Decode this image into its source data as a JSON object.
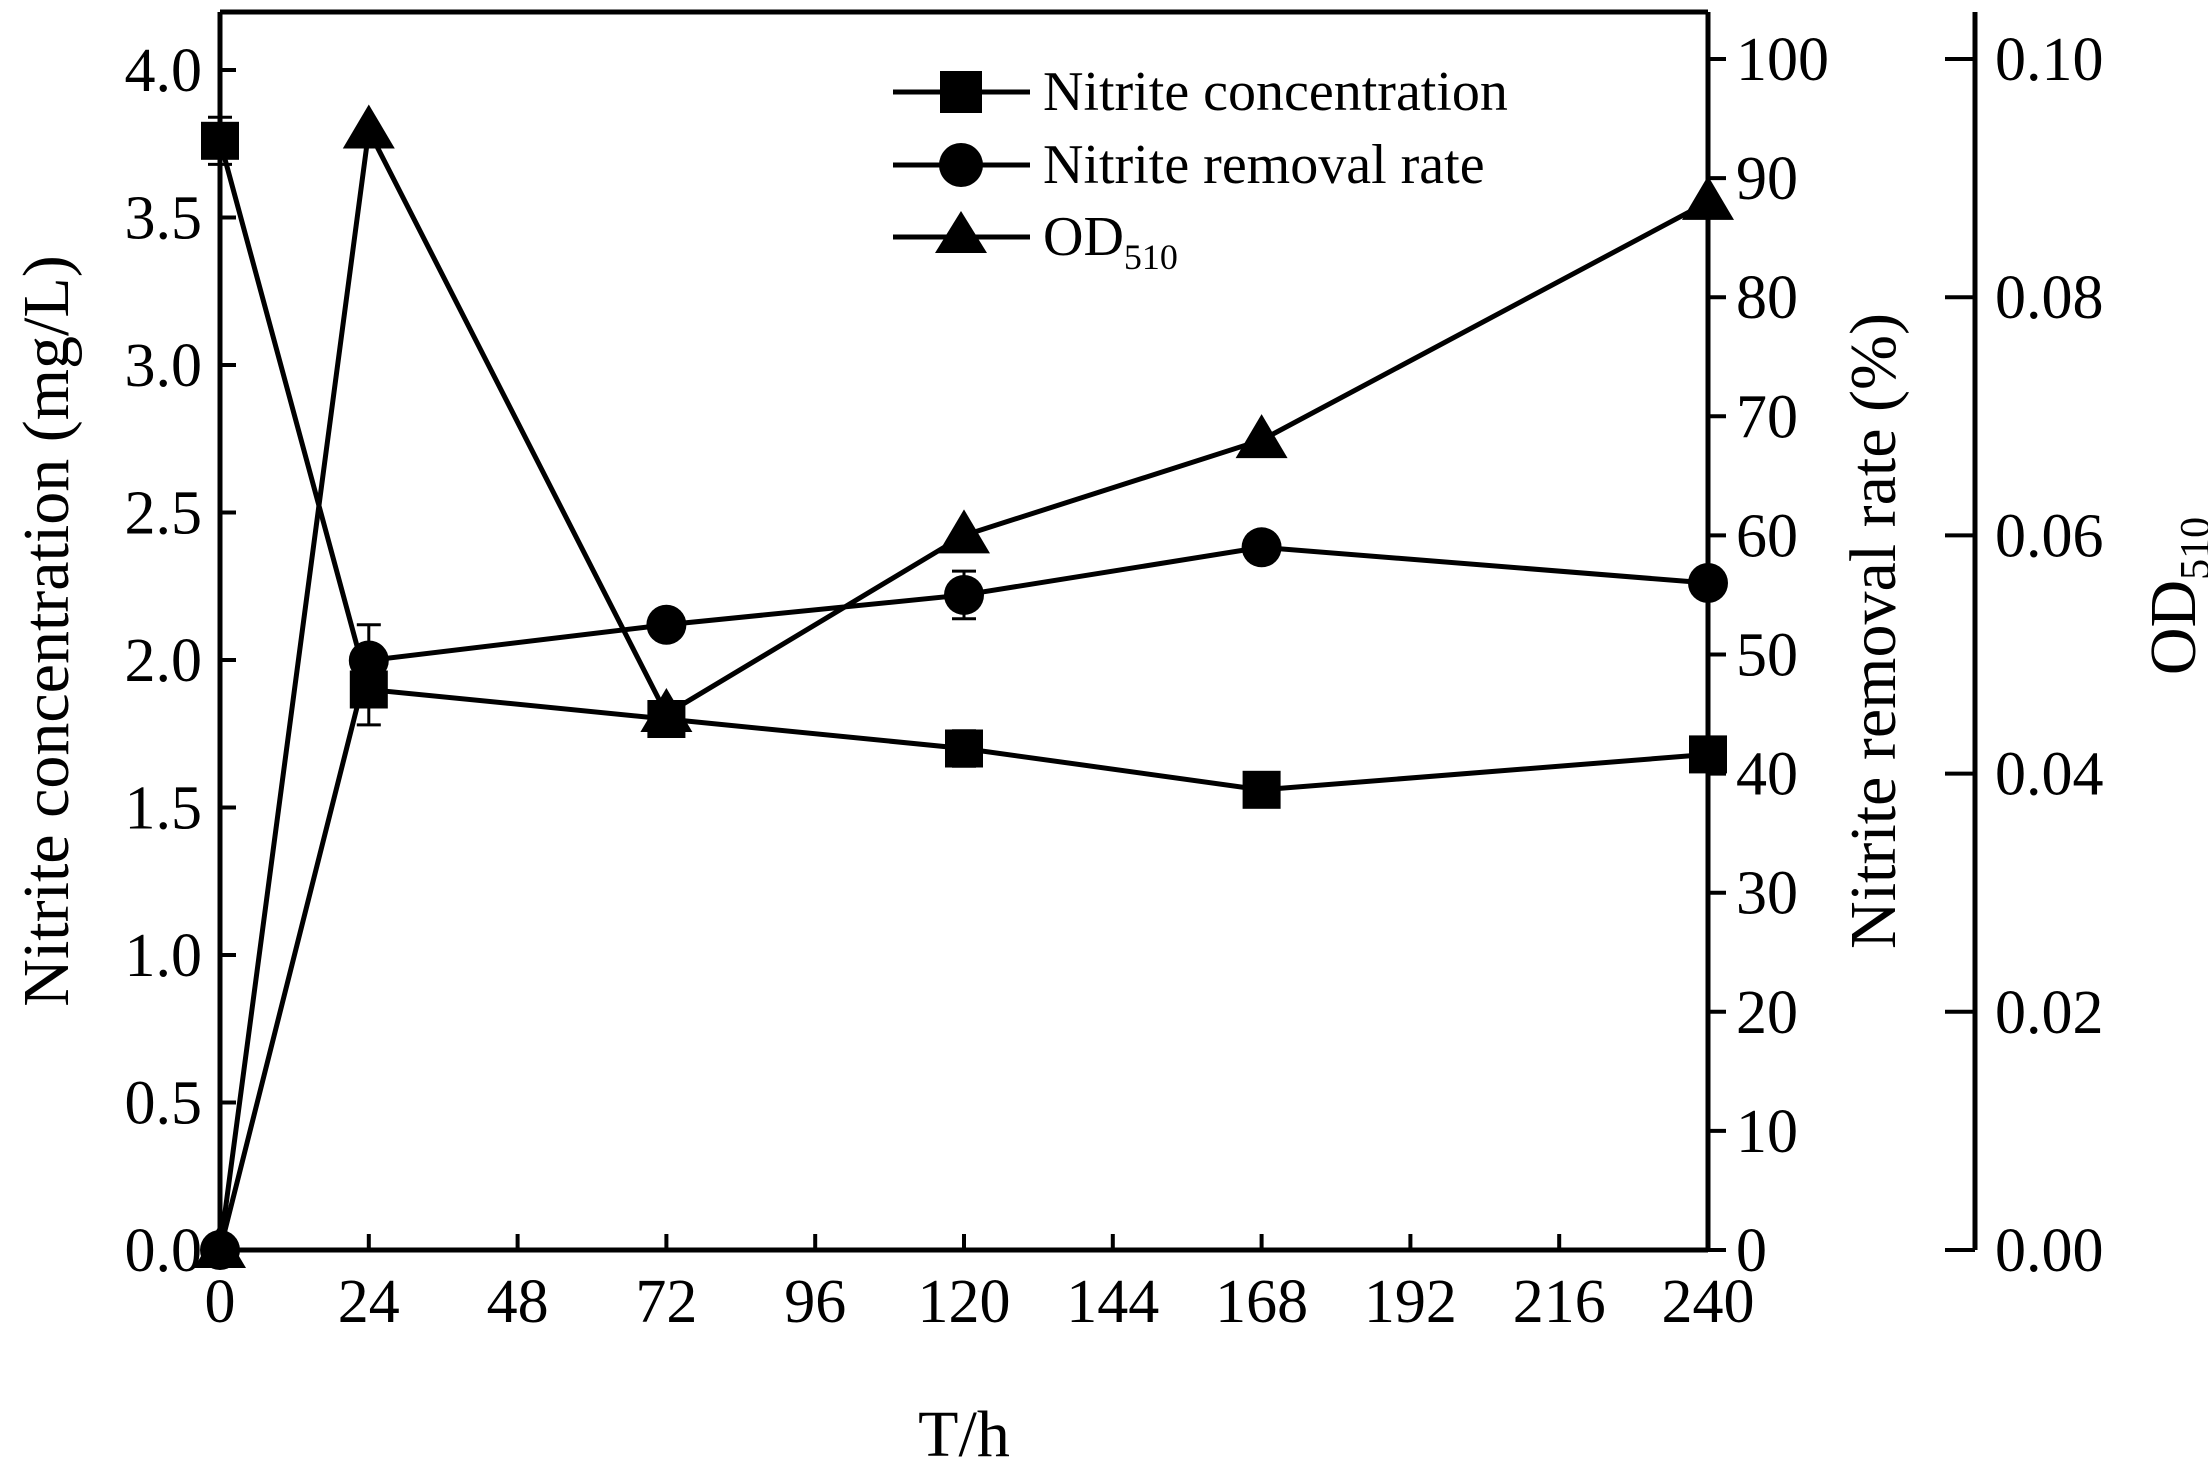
{
  "chart_data": {
    "type": "line",
    "xlabel": "T/h",
    "ylabel_left": "Nitrite concentration (mg/L)",
    "ylabel_right": "Nitrite removal rate (%)",
    "ylabel_far_right": "OD",
    "ylabel_far_right_sub": "510",
    "xlim": [
      0,
      240
    ],
    "ylim_left": [
      0,
      4.0
    ],
    "ylim_right": [
      0,
      100
    ],
    "ylim_far_right": [
      0,
      0.1
    ],
    "x_ticks": [
      "0",
      "24",
      "48",
      "72",
      "96",
      "120",
      "144",
      "168",
      "192",
      "216",
      "240"
    ],
    "y_left_ticks": [
      "0.0",
      "0.5",
      "1.0",
      "1.5",
      "2.0",
      "2.5",
      "3.0",
      "3.5",
      "4.0"
    ],
    "y_right_ticks": [
      "0",
      "10",
      "20",
      "30",
      "40",
      "50",
      "60",
      "70",
      "80",
      "90",
      "100"
    ],
    "y_far_right_ticks": [
      "0.00",
      "0.02",
      "0.04",
      "0.06",
      "0.08",
      "0.10"
    ],
    "legend_position": "top-right",
    "series": [
      {
        "name": "Nitrite concentration",
        "marker": "square",
        "axis": "left",
        "x": [
          0,
          24,
          72,
          120,
          168,
          240
        ],
        "values": [
          3.76,
          1.9,
          1.8,
          1.7,
          1.56,
          1.68
        ],
        "errors": [
          0.08,
          0.12,
          0.04,
          0.06,
          0.04,
          0.04
        ]
      },
      {
        "name": "Nitrite removal rate",
        "marker": "circle",
        "axis": "right",
        "x": [
          0,
          24,
          72,
          120,
          168,
          240
        ],
        "values": [
          0,
          49.5,
          52.5,
          55,
          59,
          56
        ],
        "errors": [
          0,
          3,
          1,
          2,
          1,
          1
        ]
      },
      {
        "name": "OD",
        "name_sub": "510",
        "marker": "triangle",
        "axis": "far_right",
        "x": [
          0,
          24,
          72,
          120,
          168,
          240
        ],
        "values": [
          0.0,
          0.094,
          0.045,
          0.06,
          0.068,
          0.088
        ],
        "errors": [
          0,
          0,
          0,
          0,
          0,
          0
        ]
      }
    ]
  }
}
